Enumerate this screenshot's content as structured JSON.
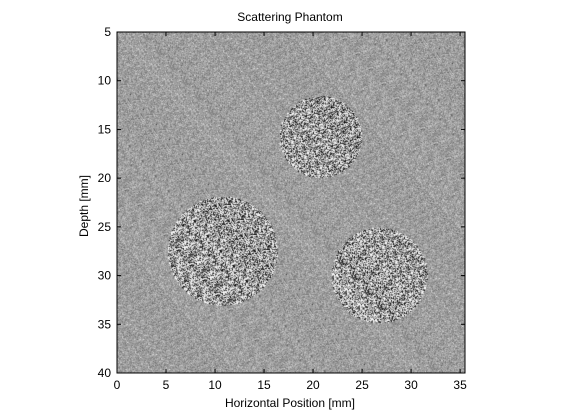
{
  "chart_data": {
    "type": "heatmap",
    "title": "Scattering Phantom",
    "xlabel": "Horizontal Position [mm]",
    "ylabel": "Depth [mm]",
    "xlim": [
      0,
      35.5
    ],
    "ylim": [
      5,
      40
    ],
    "y_reversed": true,
    "xticks": [
      0,
      5,
      10,
      15,
      20,
      25,
      30,
      35
    ],
    "yticks": [
      5,
      10,
      15,
      20,
      25,
      30,
      35,
      40
    ],
    "colormap": "gray",
    "background_colormap_level": 0.62,
    "regions": [
      {
        "shape": "circle",
        "center_x": 20.8,
        "center_depth": 15.8,
        "radius": 4.2
      },
      {
        "shape": "circle",
        "center_x": 10.8,
        "center_depth": 27.5,
        "radius": 5.6
      },
      {
        "shape": "circle",
        "center_x": 26.8,
        "center_depth": 30.0,
        "radius": 4.9
      }
    ],
    "grid": false,
    "legend": "none"
  },
  "colors": {
    "background": "#ffffff",
    "axis": "#000000"
  }
}
